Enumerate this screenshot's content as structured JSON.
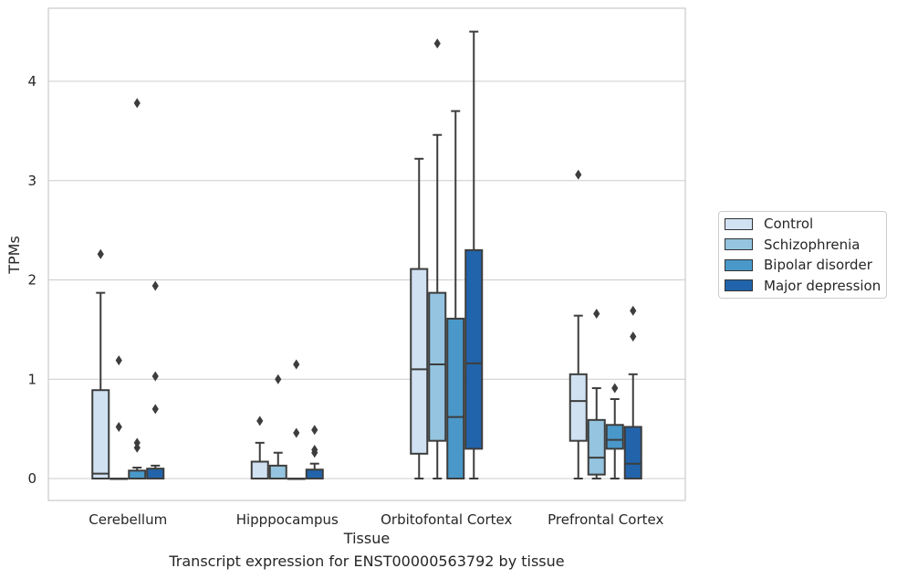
{
  "chart_data": {
    "type": "box",
    "title": "",
    "caption": "Transcript expression for ENST00000563792 by tissue",
    "xlabel": "Tissue",
    "ylabel": "TPMs",
    "ylim": [
      -0.22,
      4.75
    ],
    "yticks": [
      0,
      1,
      2,
      3,
      4
    ],
    "grid": true,
    "legend_position": "right",
    "categories": [
      "Cerebellum",
      "Hipppocampus",
      "Orbitofontal Cortex",
      "Prefrontal Cortex"
    ],
    "series": [
      {
        "name": "Control",
        "color": "#d0e1f2",
        "boxes": [
          {
            "whislo": 0,
            "q1": 0,
            "med": 0.05,
            "q3": 0.89,
            "whishi": 1.87,
            "fliers": [
              2.26
            ]
          },
          {
            "whislo": 0,
            "q1": 0,
            "med": 0,
            "q3": 0.17,
            "whishi": 0.36,
            "fliers": [
              0.58
            ]
          },
          {
            "whislo": 0,
            "q1": 0.25,
            "med": 1.1,
            "q3": 2.11,
            "whishi": 3.22,
            "fliers": []
          },
          {
            "whislo": 0,
            "q1": 0.38,
            "med": 0.78,
            "q3": 1.05,
            "whishi": 1.64,
            "fliers": [
              3.06
            ]
          }
        ]
      },
      {
        "name": "Schizophrenia",
        "color": "#94c4df",
        "boxes": [
          {
            "whislo": 0,
            "q1": 0,
            "med": 0,
            "q3": 0,
            "whishi": 0,
            "fliers": [
              0.52,
              1.19
            ]
          },
          {
            "whislo": 0,
            "q1": 0,
            "med": 0,
            "q3": 0.13,
            "whishi": 0.26,
            "fliers": [
              1.0
            ]
          },
          {
            "whislo": 0,
            "q1": 0.38,
            "med": 1.15,
            "q3": 1.87,
            "whishi": 3.46,
            "fliers": [
              4.38
            ]
          },
          {
            "whislo": 0,
            "q1": 0.04,
            "med": 0.21,
            "q3": 0.59,
            "whishi": 0.91,
            "fliers": [
              1.66
            ]
          }
        ]
      },
      {
        "name": "Bipolar disorder",
        "color": "#4a98c9",
        "boxes": [
          {
            "whislo": 0,
            "q1": 0,
            "med": 0,
            "q3": 0.08,
            "whishi": 0.11,
            "fliers": [
              0.31,
              0.36,
              3.78
            ]
          },
          {
            "whislo": 0,
            "q1": 0,
            "med": 0,
            "q3": 0,
            "whishi": 0,
            "fliers": [
              0.46,
              1.15
            ]
          },
          {
            "whislo": 0,
            "q1": 0,
            "med": 0.62,
            "q3": 1.61,
            "whishi": 3.7,
            "fliers": []
          },
          {
            "whislo": 0,
            "q1": 0.3,
            "med": 0.39,
            "q3": 0.54,
            "whishi": 0.8,
            "fliers": [
              0.91
            ]
          }
        ]
      },
      {
        "name": "Major depression",
        "color": "#2164ab",
        "boxes": [
          {
            "whislo": 0,
            "q1": 0,
            "med": 0,
            "q3": 0.1,
            "whishi": 0.13,
            "fliers": [
              0.7,
              1.03,
              1.94
            ]
          },
          {
            "whislo": 0,
            "q1": 0,
            "med": 0,
            "q3": 0.09,
            "whishi": 0.15,
            "fliers": [
              0.26,
              0.29,
              0.49
            ]
          },
          {
            "whislo": 0,
            "q1": 0.3,
            "med": 1.16,
            "q3": 2.3,
            "whishi": 4.5,
            "fliers": []
          },
          {
            "whislo": 0,
            "q1": 0,
            "med": 0.15,
            "q3": 0.52,
            "whishi": 1.05,
            "fliers": [
              1.43,
              1.69
            ]
          }
        ]
      }
    ]
  }
}
